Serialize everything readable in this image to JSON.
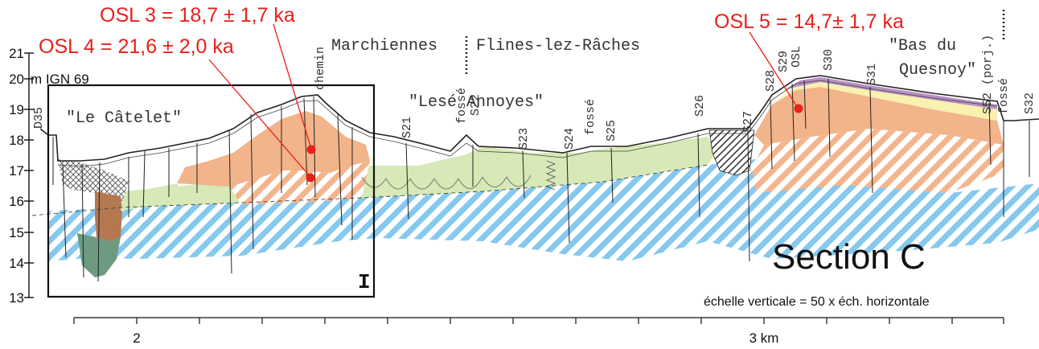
{
  "elevation_axis": {
    "ticks": [
      "21",
      "20",
      "19",
      "18",
      "17",
      "16",
      "15",
      "14",
      "13"
    ],
    "unit_label": "m IGN 69"
  },
  "osl_labels": {
    "osl3": "OSL 3 = 18,7 ± 1,7 ka",
    "osl4": "OSL 4 = 21,6 ± 2,0 ka",
    "osl5": "OSL 5 = 14,7± 1,7 ka"
  },
  "places": {
    "marchiennes": "Marchiennes",
    "flines": "Flines-lez-Râches",
    "catelet": "\"Le Câtelet\"",
    "annoyes": "\"Lesé Annoyes\"",
    "bas_du": "\"Bas du",
    "quesnoy": "Quesnoy\""
  },
  "boreholes": {
    "d35": "D35",
    "chemin": "chemin",
    "s21": "S21",
    "fosse1": "fossé",
    "s22": "S22",
    "s23": "S23",
    "s24": "S24",
    "fosse2": "fossé",
    "s25": "S25",
    "s26": "S26",
    "s27": "S27",
    "s28": "S28",
    "s29": "S29",
    "osl": "OSL",
    "s30": "S30",
    "s31": "S31",
    "s52": "S52 (porj.)",
    "fosse3": "fossé",
    "s32": "S32"
  },
  "box_label": "I",
  "section_title": "Section C",
  "scale_note": "échelle verticale = 50 x éch. horizontale",
  "x_axis": {
    "label_2": "2",
    "label_3": "3 km"
  },
  "colors": {
    "osl_text": "#e8201a",
    "osl_dot": "#e8201a",
    "blue_hatch": "#86c8ee",
    "orange_hatch": "#f4b48c",
    "orange_fill": "#f2b48a",
    "green_fill": "#d6e9b6",
    "purple_band": "#b890c4",
    "yellow_band": "#f8f1b0",
    "brown_fill": "#b47850",
    "dark_green_fill": "#6f9a82"
  }
}
